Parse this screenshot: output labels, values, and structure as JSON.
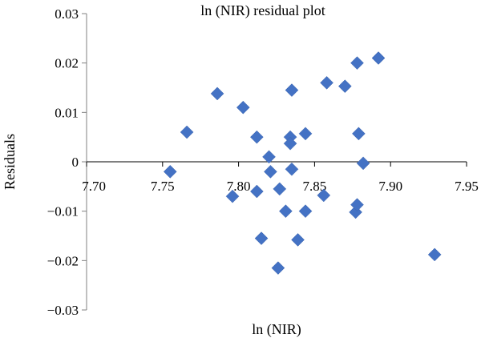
{
  "chart_data": {
    "type": "scatter",
    "title": "ln (NIR) residual plot",
    "xlabel": "ln (NIR)",
    "ylabel": "Residuals",
    "xlim": [
      7.7,
      7.95
    ],
    "ylim": [
      -0.03,
      0.03
    ],
    "x_ticks": [
      "7.70",
      "7.75",
      "7.80",
      "7.85",
      "7.90",
      "7.95"
    ],
    "y_ticks": [
      "0.03",
      "0.02",
      "0.01",
      "0",
      "−0.01",
      "−0.02",
      "−0.03"
    ],
    "grid": false,
    "legend": "none",
    "marker": "diamond",
    "marker_color": "#4472C4",
    "points": [
      {
        "x": 7.755,
        "y": -0.002
      },
      {
        "x": 7.766,
        "y": 0.006
      },
      {
        "x": 7.786,
        "y": 0.0138
      },
      {
        "x": 7.796,
        "y": -0.007
      },
      {
        "x": 7.803,
        "y": 0.011
      },
      {
        "x": 7.812,
        "y": 0.005
      },
      {
        "x": 7.812,
        "y": -0.006
      },
      {
        "x": 7.815,
        "y": -0.0155
      },
      {
        "x": 7.82,
        "y": 0.001
      },
      {
        "x": 7.821,
        "y": -0.002
      },
      {
        "x": 7.826,
        "y": -0.0215
      },
      {
        "x": 7.827,
        "y": -0.0055
      },
      {
        "x": 7.831,
        "y": -0.01
      },
      {
        "x": 7.834,
        "y": 0.005
      },
      {
        "x": 7.834,
        "y": 0.0037
      },
      {
        "x": 7.835,
        "y": -0.0015
      },
      {
        "x": 7.835,
        "y": 0.0145
      },
      {
        "x": 7.839,
        "y": -0.0158
      },
      {
        "x": 7.844,
        "y": 0.0057
      },
      {
        "x": 7.844,
        "y": -0.01
      },
      {
        "x": 7.856,
        "y": -0.0068
      },
      {
        "x": 7.858,
        "y": 0.016
      },
      {
        "x": 7.87,
        "y": 0.0153
      },
      {
        "x": 7.877,
        "y": -0.0102
      },
      {
        "x": 7.878,
        "y": 0.02
      },
      {
        "x": 7.878,
        "y": -0.0087
      },
      {
        "x": 7.879,
        "y": 0.0057
      },
      {
        "x": 7.882,
        "y": -0.0003
      },
      {
        "x": 7.892,
        "y": 0.021
      },
      {
        "x": 7.929,
        "y": -0.0188
      }
    ]
  }
}
